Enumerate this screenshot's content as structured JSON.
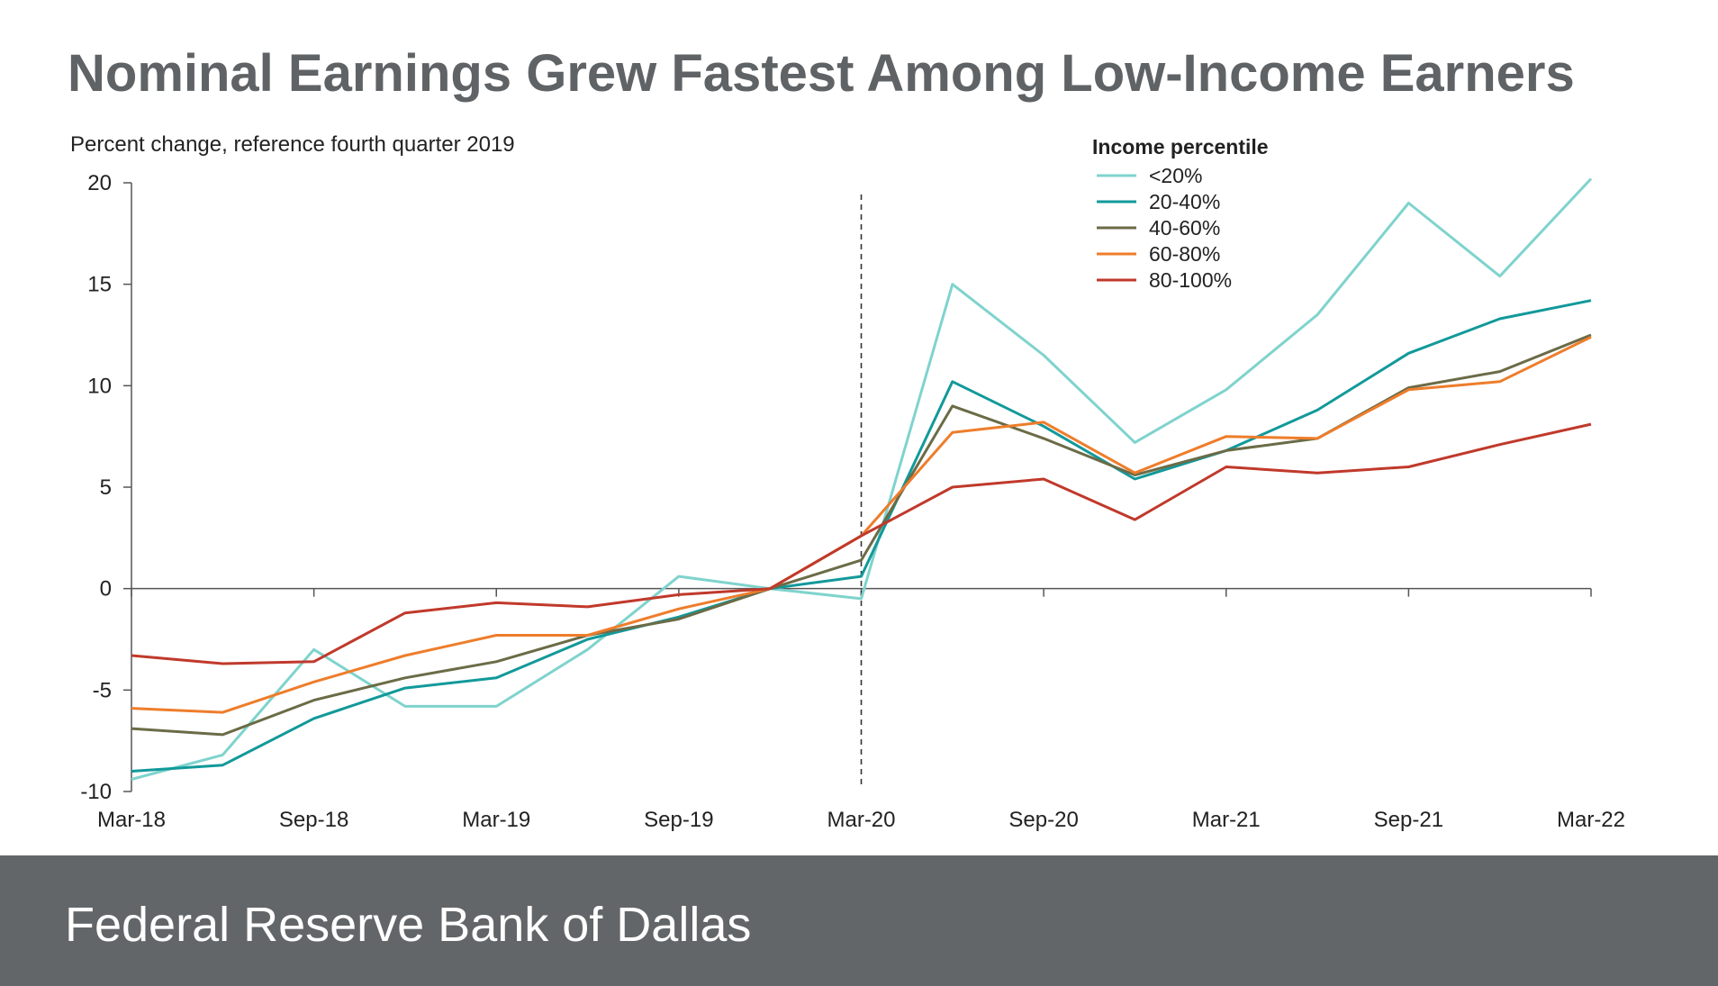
{
  "slide": {
    "title": "Nominal Earnings Grew Fastest Among Low-Income Earners",
    "footer": "Federal Reserve Bank of Dallas"
  },
  "chart_data": {
    "type": "line",
    "ylabel": "Percent change, reference fourth quarter 2019",
    "ylim": [
      -10,
      20
    ],
    "yticks": [
      20,
      15,
      10,
      5,
      0,
      -5,
      -10
    ],
    "x": [
      "Mar-18",
      "Jun-18",
      "Sep-18",
      "Dec-18",
      "Mar-19",
      "Jun-19",
      "Sep-19",
      "Dec-19",
      "Mar-20",
      "Jun-20",
      "Sep-20",
      "Dec-20",
      "Mar-21",
      "Jun-21",
      "Sep-21",
      "Dec-21",
      "Mar-22"
    ],
    "xtick_labels": [
      "Mar-18",
      "Sep-18",
      "Mar-19",
      "Sep-19",
      "Mar-20",
      "Sep-20",
      "Mar-21",
      "Sep-21",
      "Mar-22"
    ],
    "xtick_index": [
      0,
      2,
      4,
      6,
      8,
      10,
      12,
      14,
      16
    ],
    "vertical_marker": "Mar-20",
    "legend": {
      "title": "Income percentile",
      "placement": "top-right"
    },
    "series": [
      {
        "name": "<20%",
        "color": "#7fd3cd",
        "values": [
          -9.4,
          -8.2,
          -3.0,
          -5.8,
          -5.8,
          -3.0,
          0.6,
          0.0,
          -0.5,
          15.0,
          11.5,
          7.2,
          9.8,
          13.5,
          19.0,
          15.4,
          20.2
        ]
      },
      {
        "name": "20-40%",
        "color": "#12999a",
        "values": [
          -9.0,
          -8.7,
          -6.4,
          -4.9,
          -4.4,
          -2.5,
          -1.4,
          0.0,
          0.6,
          10.2,
          8.0,
          5.4,
          6.8,
          8.8,
          11.6,
          13.3,
          14.2
        ]
      },
      {
        "name": "40-60%",
        "color": "#6b6b47",
        "values": [
          -6.9,
          -7.2,
          -5.5,
          -4.4,
          -3.6,
          -2.3,
          -1.5,
          0.0,
          1.4,
          9.0,
          7.4,
          5.6,
          6.8,
          7.4,
          9.9,
          10.7,
          12.5
        ]
      },
      {
        "name": "60-80%",
        "color": "#ee7d2b",
        "values": [
          -5.9,
          -6.1,
          -4.6,
          -3.3,
          -2.3,
          -2.3,
          -1.0,
          0.0,
          2.6,
          7.7,
          8.2,
          5.7,
          7.5,
          7.4,
          9.8,
          10.2,
          12.4
        ]
      },
      {
        "name": "80-100%",
        "color": "#c0392b",
        "values": [
          -3.3,
          -3.7,
          -3.6,
          -1.2,
          -0.7,
          -0.9,
          -0.3,
          0.0,
          2.6,
          5.0,
          5.4,
          3.4,
          6.0,
          5.7,
          6.0,
          7.1,
          8.1
        ]
      }
    ]
  }
}
